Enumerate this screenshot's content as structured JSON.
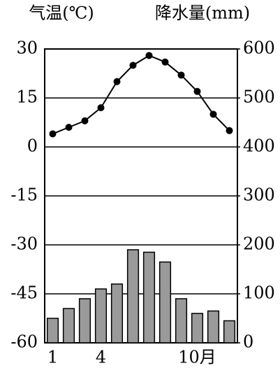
{
  "chart_data": {
    "type": "combo",
    "y_label": "气温(℃)",
    "y2_label": "降水量(mm)",
    "categories": [
      "1",
      null,
      null,
      "4",
      null,
      null,
      null,
      null,
      null,
      "10月",
      null,
      null
    ],
    "series": [
      {
        "type": "line",
        "axis": "y",
        "color": "#000000",
        "values": [
          4,
          6,
          8,
          12,
          20,
          25,
          28,
          26,
          22,
          17,
          10,
          5
        ]
      },
      {
        "type": "bar",
        "axis": "y2",
        "color": "#9a9a9a",
        "values": [
          50,
          70,
          90,
          110,
          120,
          190,
          185,
          165,
          90,
          60,
          65,
          45
        ]
      }
    ],
    "ylim": [
      -60,
      30
    ],
    "yticks": [
      -60,
      -45,
      -30,
      -15,
      0,
      15,
      30
    ],
    "y2lim": [
      0,
      600
    ],
    "y2ticks": [
      0,
      100,
      200,
      300,
      400,
      500,
      600
    ],
    "grid": true
  }
}
